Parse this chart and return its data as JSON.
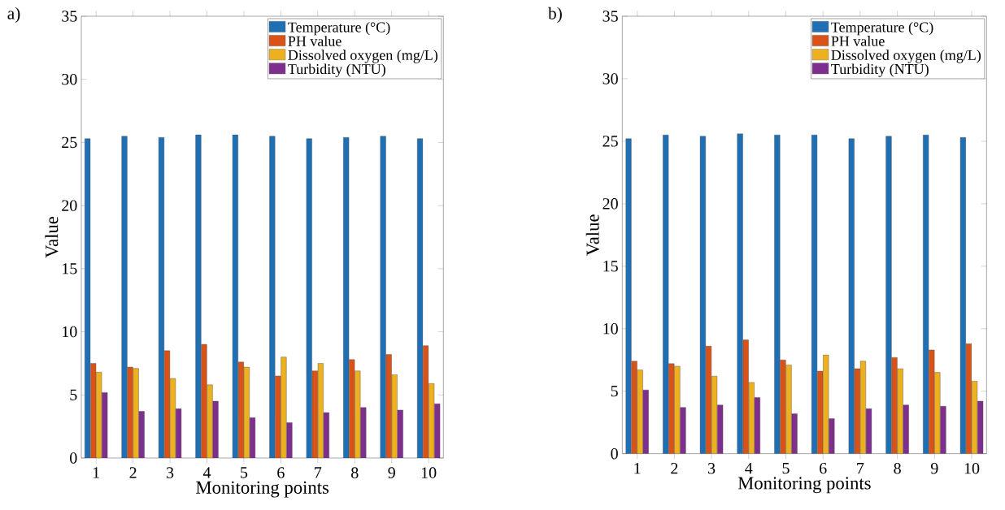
{
  "chart_data": [
    {
      "type": "bar",
      "annotations": [
        "a)"
      ],
      "xlabel": "Monitoring points",
      "ylabel": "Value",
      "categories": [
        "1",
        "2",
        "3",
        "4",
        "5",
        "6",
        "7",
        "8",
        "9",
        "10"
      ],
      "series": [
        {
          "name": "Temperature (°C)",
          "color": "#1f6fb5",
          "values": [
            25.3,
            25.5,
            25.4,
            25.6,
            25.6,
            25.5,
            25.3,
            25.4,
            25.5,
            25.3
          ]
        },
        {
          "name": "PH value",
          "color": "#d95319",
          "values": [
            7.5,
            7.2,
            8.5,
            9.0,
            7.6,
            6.5,
            6.9,
            7.8,
            8.2,
            8.9
          ]
        },
        {
          "name": "Dissolved oxygen (mg/L)",
          "color": "#edb120",
          "values": [
            6.8,
            7.1,
            6.3,
            5.8,
            7.2,
            8.0,
            7.5,
            6.9,
            6.6,
            5.9
          ]
        },
        {
          "name": "Turbidity (NTU)",
          "color": "#7e2f8e",
          "values": [
            5.2,
            3.7,
            3.9,
            4.5,
            3.2,
            2.8,
            3.6,
            4.0,
            3.8,
            4.3
          ]
        }
      ],
      "ylim": [
        0,
        35
      ],
      "yticks": [
        0,
        5,
        10,
        15,
        20,
        25,
        30,
        35
      ],
      "legend": "top right"
    },
    {
      "type": "bar",
      "annotations": [
        "b)"
      ],
      "xlabel": "Monitoring points",
      "ylabel": "Value",
      "categories": [
        "1",
        "2",
        "3",
        "4",
        "5",
        "6",
        "7",
        "8",
        "9",
        "10"
      ],
      "series": [
        {
          "name": "Temperature (°C)",
          "color": "#1f6fb5",
          "values": [
            25.2,
            25.5,
            25.4,
            25.6,
            25.5,
            25.5,
            25.2,
            25.4,
            25.5,
            25.3
          ]
        },
        {
          "name": "PH value",
          "color": "#d95319",
          "values": [
            7.4,
            7.2,
            8.6,
            9.1,
            7.5,
            6.6,
            6.8,
            7.7,
            8.3,
            8.8
          ]
        },
        {
          "name": "Dissolved oxygen (mg/L)",
          "color": "#edb120",
          "values": [
            6.7,
            7.0,
            6.2,
            5.7,
            7.1,
            7.9,
            7.4,
            6.8,
            6.5,
            5.8
          ]
        },
        {
          "name": "Turbidity (NTU)",
          "color": "#7e2f8e",
          "values": [
            5.1,
            3.7,
            3.9,
            4.5,
            3.2,
            2.8,
            3.6,
            3.9,
            3.8,
            4.2
          ]
        }
      ],
      "ylim": [
        0,
        35
      ],
      "yticks": [
        0,
        5,
        10,
        15,
        20,
        25,
        30,
        35
      ],
      "legend": "top right"
    }
  ]
}
